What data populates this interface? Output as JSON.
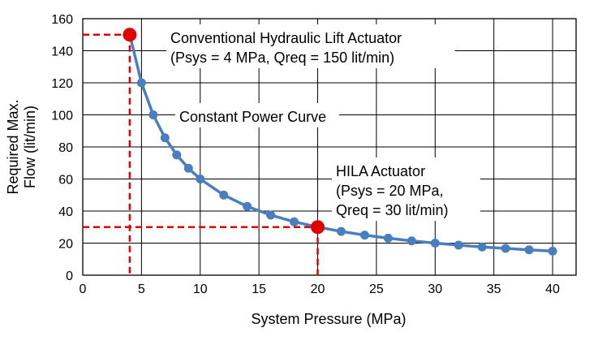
{
  "chart_data": {
    "type": "line",
    "title": "",
    "xlabel": "System Pressure (MPa)",
    "ylabel_lines": [
      "Required Max.",
      "Flow (lit/min)"
    ],
    "xlim": [
      0,
      42
    ],
    "ylim": [
      0,
      160
    ],
    "xticks": [
      0,
      5,
      10,
      15,
      20,
      25,
      30,
      35,
      40
    ],
    "yticks": [
      0,
      20,
      40,
      60,
      80,
      100,
      120,
      140,
      160
    ],
    "grid": true,
    "series": [
      {
        "name": "Constant Power Curve",
        "color": "#4a7fbf",
        "x": [
          4,
          5,
          6,
          7,
          8,
          9,
          10,
          12,
          14,
          16,
          18,
          20,
          22,
          24,
          26,
          28,
          30,
          32,
          34,
          36,
          38,
          40
        ],
        "y": [
          150,
          120,
          100,
          85.7,
          75,
          66.7,
          60,
          50,
          42.9,
          37.5,
          33.3,
          30,
          27.3,
          25,
          23.1,
          21.4,
          20,
          18.75,
          17.6,
          16.7,
          15.8,
          15
        ]
      }
    ],
    "highlight_points": [
      {
        "x": 4,
        "y": 150,
        "color": "#e00000"
      },
      {
        "x": 20,
        "y": 30,
        "color": "#e00000"
      }
    ],
    "annotations": {
      "conventional": [
        "Conventional Hydraulic Lift Actuator",
        "(Psys = 4 MPa, Qreq = 150 lit/min)"
      ],
      "curve": [
        "Constant Power Curve"
      ],
      "hila": [
        "HILA Actuator",
        "(Psys = 20 MPa,",
        "Qreq = 30 lit/min)"
      ]
    }
  }
}
